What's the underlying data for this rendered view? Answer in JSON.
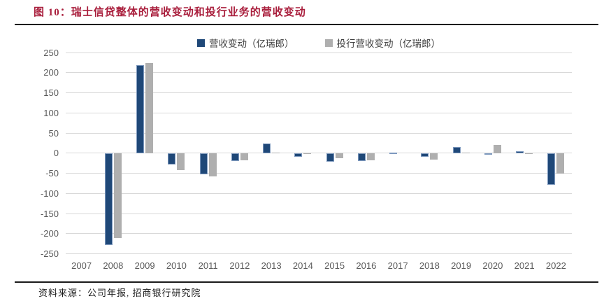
{
  "colors": {
    "title_red": "#A91E3C",
    "bar_blue": "#1F4878",
    "bar_blue_border": "#7E99BE",
    "bar_gray": "#AFAFAF",
    "gridline": "#D9D9D9",
    "axis_text": "#595959",
    "rule_dark": "#1a1a1a"
  },
  "source_note": "资料来源：公司年报, 招商银行研究院",
  "chart_data": {
    "type": "bar",
    "title": "图 10：瑞士信贷整体的营收变动和投行业务的营收变动",
    "categories": [
      "2007",
      "2008",
      "2009",
      "2010",
      "2011",
      "2012",
      "2013",
      "2014",
      "2015",
      "2016",
      "2017",
      "2018",
      "2019",
      "2020",
      "2021",
      "2022"
    ],
    "series": [
      {
        "name": "营收变动（亿瑞郎）",
        "color": "#1F4878",
        "values": [
          0,
          -228,
          218,
          -29,
          -53,
          -19,
          24,
          -9,
          -21,
          -19,
          2,
          -9,
          16,
          -1,
          4,
          -78
        ]
      },
      {
        "name": "投行营收变动（亿瑞郎）",
        "color": "#AFAFAF",
        "values": [
          0,
          -210,
          224,
          -43,
          -58,
          -18,
          1,
          -1,
          -12,
          -17,
          0,
          -16,
          2,
          20,
          -3,
          -51
        ]
      }
    ],
    "xlabel": "",
    "ylabel": "",
    "ylim": [
      -250,
      250
    ],
    "ytick_step": 50,
    "grid": true,
    "legend_position": "top"
  }
}
